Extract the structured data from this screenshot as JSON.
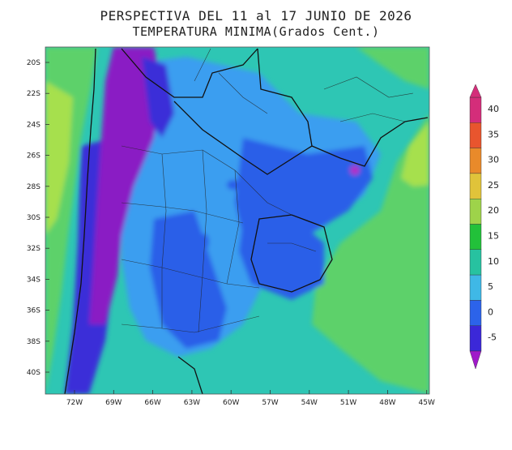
{
  "title_line1": "PERSPECTIVA DEL 11 al 17 JUNIO DE 2026",
  "title_line2": "TEMPERATURA MINIMA(Grados Cent.)",
  "lat_labels": [
    "20S",
    "22S",
    "24S",
    "26S",
    "28S",
    "30S",
    "32S",
    "34S",
    "36S",
    "38S",
    "40S"
  ],
  "lon_labels": [
    "72W",
    "69W",
    "66W",
    "63W",
    "60W",
    "57W",
    "54W",
    "51W",
    "48W",
    "45W"
  ],
  "colorbar": {
    "labels": [
      "40",
      "35",
      "30",
      "25",
      "20",
      "15",
      "10",
      "5",
      "0",
      "-5"
    ],
    "colors": [
      "#d42d7a",
      "#e8552e",
      "#e98a2a",
      "#e0c33a",
      "#9ed34a",
      "#22c13a",
      "#27c2a0",
      "#3fb8e6",
      "#2c63ea",
      "#3b28d8"
    ]
  },
  "colors": {
    "warm_green": "#5dd16a",
    "lime": "#a6e04d",
    "teal": "#2ec6b4",
    "light_blue": "#3a9ef0",
    "blue": "#2a5ee8",
    "deep_blue": "#3a2fd8",
    "purple": "#8a1fc4",
    "magenta": "#b02ec8"
  }
}
